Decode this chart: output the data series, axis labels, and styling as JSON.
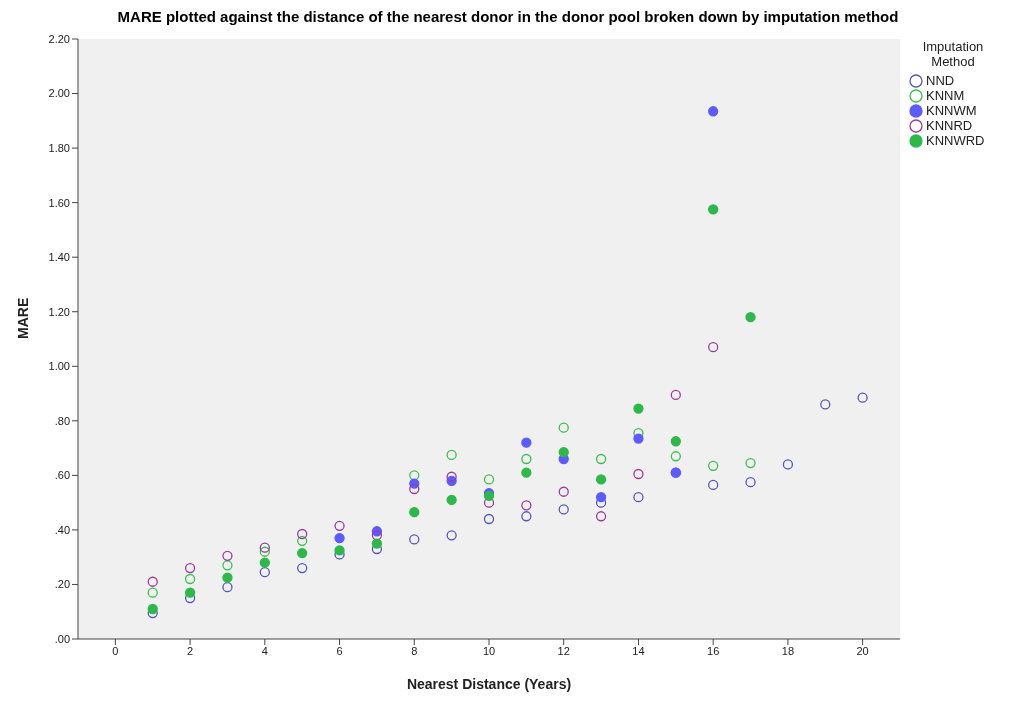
{
  "chart_data": {
    "type": "scatter",
    "title": "MARE plotted against the distance of the nearest donor in the donor pool broken down by imputation method",
    "xlabel": "Nearest Distance (Years)",
    "ylabel": "MARE",
    "legend_title": "Imputation Method",
    "legend": "top right",
    "grid": false,
    "marker": "circle",
    "x": [
      1,
      2,
      3,
      4,
      5,
      6,
      7,
      8,
      9,
      10,
      11,
      12,
      13,
      14,
      15,
      16,
      17,
      18,
      19,
      20
    ],
    "xlim": [
      -1,
      21
    ],
    "xticks": [
      0,
      2,
      4,
      6,
      8,
      10,
      12,
      14,
      16,
      18,
      20
    ],
    "ylim": [
      0,
      2.2
    ],
    "yticks": [
      {
        "value": 0,
        "label": ".00"
      },
      {
        "value": 0.2,
        "label": ".20"
      },
      {
        "value": 0.4,
        "label": ".40"
      },
      {
        "value": 0.6,
        "label": ".60"
      },
      {
        "value": 0.8,
        "label": ".80"
      },
      {
        "value": 1,
        "label": "1.00"
      },
      {
        "value": 1.2,
        "label": "1.20"
      },
      {
        "value": 1.4,
        "label": "1.40"
      },
      {
        "value": 1.6,
        "label": "1.60"
      },
      {
        "value": 1.8,
        "label": "1.80"
      },
      {
        "value": 2,
        "label": "2.00"
      },
      {
        "value": 2.2,
        "label": "2.20"
      }
    ],
    "series": [
      {
        "name": "NND",
        "color": "#5457b8",
        "values": [
          0.095,
          0.15,
          0.19,
          0.245,
          0.26,
          0.31,
          0.33,
          0.365,
          0.38,
          0.44,
          0.45,
          0.475,
          0.5,
          0.52,
          0.61,
          0.565,
          0.575,
          0.64,
          0.86,
          0.885
        ]
      },
      {
        "name": "KNNM",
        "color": "#3cbf4c",
        "values": [
          0.17,
          0.22,
          0.27,
          0.32,
          0.36,
          null,
          null,
          0.6,
          0.675,
          0.585,
          0.66,
          0.775,
          0.66,
          0.755,
          0.67,
          0.635,
          0.645,
          null,
          null,
          null
        ]
      },
      {
        "name": "KNNWM",
        "color": "#5b5bff",
        "values": [
          null,
          null,
          null,
          null,
          null,
          0.37,
          0.395,
          0.57,
          0.58,
          0.535,
          0.72,
          0.66,
          0.52,
          0.735,
          0.61,
          1.935,
          null,
          null,
          null,
          null
        ]
      },
      {
        "name": "KNNRD",
        "color": "#9c3b9c",
        "values": [
          0.21,
          0.26,
          0.305,
          0.335,
          0.385,
          0.415,
          0.38,
          0.55,
          0.595,
          0.5,
          0.49,
          0.54,
          0.45,
          0.605,
          0.895,
          1.07,
          null,
          null,
          null,
          null
        ]
      },
      {
        "name": "KNNWRD",
        "color": "#2db84a",
        "values": [
          0.11,
          0.17,
          0.225,
          0.28,
          0.315,
          0.325,
          0.35,
          0.465,
          0.51,
          0.525,
          0.61,
          0.685,
          0.585,
          0.845,
          0.725,
          1.575,
          1.18,
          null,
          null,
          null
        ]
      }
    ]
  }
}
